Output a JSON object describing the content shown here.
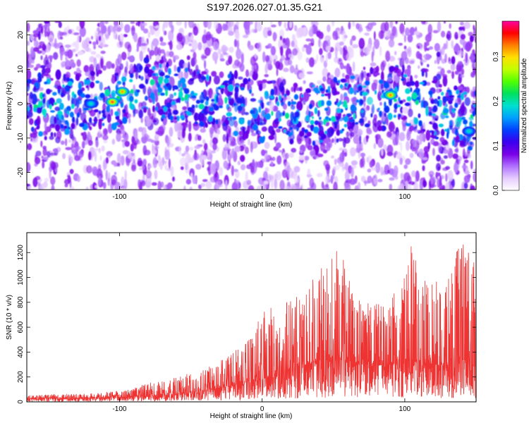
{
  "title": "S197.2026.027.01.35.G21",
  "chart_data": [
    {
      "type": "heatmap",
      "xlabel": "Height of straight line (km)",
      "ylabel": "Frequency (Hz)",
      "xlim": [
        -165,
        150
      ],
      "ylim": [
        -25,
        24
      ],
      "xticks": [
        -100,
        0,
        100
      ],
      "yticks": [
        -20,
        -10,
        0,
        10,
        20
      ],
      "colorbar": {
        "label": "Normalized spectral amplitude",
        "range": [
          0.0,
          0.38
        ],
        "ticks": [
          0.0,
          0.1,
          0.2,
          0.3
        ],
        "colormap": [
          "#ffffff",
          "#e6ccff",
          "#b070ff",
          "#7a00e6",
          "#3a00f0",
          "#0040ff",
          "#00a0ff",
          "#00e0d0",
          "#00e060",
          "#50ff00",
          "#c0ff00",
          "#ffe000",
          "#ff8000",
          "#ff0000",
          "#ff00a0"
        ]
      },
      "ridge": {
        "description_points_km_hz": [
          [
            -130,
            0
          ],
          [
            -100,
            1.5
          ],
          [
            -80,
            4
          ],
          [
            -40,
            2
          ],
          [
            0,
            -2
          ],
          [
            40,
            -3
          ],
          [
            80,
            1
          ],
          [
            100,
            2
          ],
          [
            140,
            -4
          ]
        ],
        "hotspots": [
          {
            "x": -105,
            "y": 0.5,
            "value": 0.36
          },
          {
            "x": -98,
            "y": 3.5,
            "value": 0.33
          },
          {
            "x": -120,
            "y": 0,
            "value": 0.2
          },
          {
            "x": 90,
            "y": 2.5,
            "value": 0.34
          },
          {
            "x": 145,
            "y": -8,
            "value": 0.2
          }
        ]
      }
    },
    {
      "type": "line",
      "xlabel": "Height of straight line (km)",
      "ylabel": "SNR (10 * v/v)",
      "xlim": [
        -165,
        150
      ],
      "ylim": [
        0,
        1360
      ],
      "xticks": [
        -100,
        0,
        100
      ],
      "yticks": [
        0,
        200,
        400,
        600,
        800,
        1000,
        1200
      ],
      "color": "#ee3333",
      "envelope": {
        "x": [
          -165,
          -120,
          -100,
          -80,
          -60,
          -45,
          -35,
          -20,
          -5,
          0,
          10,
          20,
          30,
          40,
          50,
          55,
          60,
          70,
          80,
          90,
          100,
          105,
          110,
          120,
          130,
          140,
          150
        ],
        "base": [
          25,
          30,
          35,
          45,
          60,
          80,
          100,
          130,
          160,
          180,
          220,
          260,
          300,
          320,
          340,
          350,
          330,
          300,
          290,
          300,
          320,
          330,
          310,
          300,
          290,
          300,
          280
        ],
        "peak": [
          55,
          70,
          90,
          150,
          200,
          250,
          310,
          400,
          560,
          760,
          780,
          820,
          900,
          1050,
          1230,
          1290,
          1000,
          850,
          800,
          820,
          1120,
          1360,
          1000,
          950,
          1050,
          1340,
          1100
        ]
      }
    }
  ]
}
